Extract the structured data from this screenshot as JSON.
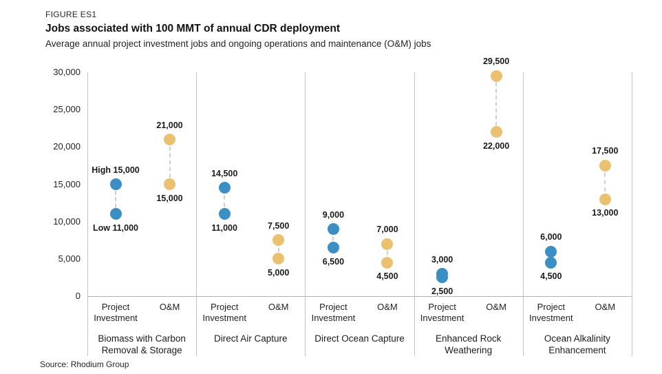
{
  "colors": {
    "project_investment": "#3a8fc4",
    "om": "#eac16e",
    "connector": "#cfcfcf",
    "grid_line": "#c3c3c3",
    "text": "#1f1f1f"
  },
  "chart_data": {
    "type": "scatter",
    "figure_label": "FIGURE ES1",
    "title": "Jobs associated with 100 MMT of annual CDR deployment",
    "subtitle": "Average annual project investment jobs and ongoing operations and maintenance (O&M) jobs",
    "source": "Source: Rhodium Group",
    "ylim": [
      0,
      30000
    ],
    "ytick_step": 5000,
    "ytick_labels": [
      "0",
      "5,000",
      "10,000",
      "15,000",
      "20,000",
      "25,000",
      "30,000"
    ],
    "grid": false,
    "legend_position": "none",
    "column_labels": [
      "Project Investment",
      "O&M"
    ],
    "series": [
      {
        "name": "Project Investment",
        "color_key": "project_investment"
      },
      {
        "name": "O&M",
        "color_key": "om"
      }
    ],
    "categories": [
      {
        "name": "Biomass with Carbon Removal & Storage",
        "project_investment": {
          "high": 15000,
          "low": 11000,
          "high_label": "High 15,000",
          "low_label": "Low 11,000"
        },
        "om": {
          "high": 21000,
          "low": 15000,
          "high_label": "21,000",
          "low_label": "15,000"
        }
      },
      {
        "name": "Direct Air Capture",
        "project_investment": {
          "high": 14500,
          "low": 11000,
          "high_label": "14,500",
          "low_label": "11,000"
        },
        "om": {
          "high": 7500,
          "low": 5000,
          "high_label": "7,500",
          "low_label": "5,000"
        }
      },
      {
        "name": "Direct Ocean Capture",
        "project_investment": {
          "high": 9000,
          "low": 6500,
          "high_label": "9,000",
          "low_label": "6,500"
        },
        "om": {
          "high": 7000,
          "low": 4500,
          "high_label": "7,000",
          "low_label": "4,500"
        }
      },
      {
        "name": "Enhanced Rock Weathering",
        "project_investment": {
          "high": 3000,
          "low": 2500,
          "high_label": "3,000",
          "low_label": "2,500"
        },
        "om": {
          "high": 29500,
          "low": 22000,
          "high_label": "29,500",
          "low_label": "22,000"
        }
      },
      {
        "name": "Ocean Alkalinity Enhancement",
        "project_investment": {
          "high": 6000,
          "low": 4500,
          "high_label": "6,000",
          "low_label": "4,500"
        },
        "om": {
          "high": 17500,
          "low": 13000,
          "high_label": "17,500",
          "low_label": "13,000"
        }
      }
    ]
  }
}
